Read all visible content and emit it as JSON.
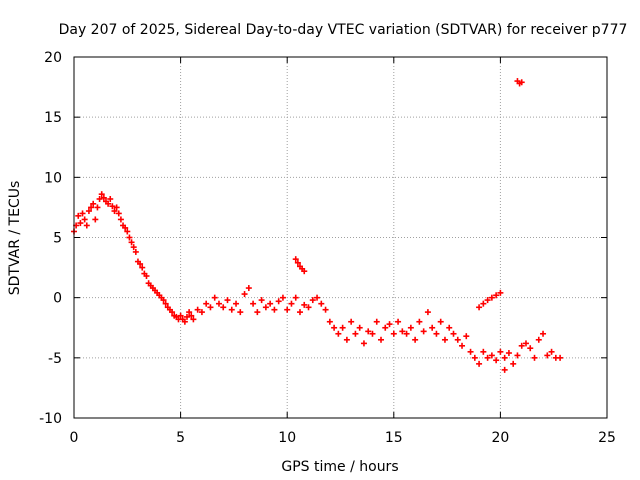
{
  "chart_data": {
    "type": "scatter",
    "title": "Day 207 of 2025, Sidereal Day-to-day VTEC variation (SDTVAR) for receiver p777",
    "xlabel": "GPS time / hours",
    "ylabel": "SDTVAR / TECUs",
    "xlim": [
      0,
      25
    ],
    "ylim": [
      -10,
      20
    ],
    "xticks": [
      "0",
      "5",
      "10",
      "15",
      "20",
      "25"
    ],
    "yticks": [
      "-10",
      "-5",
      "0",
      "5",
      "10",
      "15",
      "20"
    ],
    "grid": true,
    "marker": "plus",
    "color": "#ff0000",
    "series": [
      {
        "name": "SDTVAR",
        "x": [
          0.0,
          0.1,
          0.2,
          0.3,
          0.4,
          0.5,
          0.6,
          0.7,
          0.8,
          0.9,
          1.0,
          1.1,
          1.2,
          1.3,
          1.4,
          1.5,
          1.6,
          1.7,
          1.8,
          1.9,
          2.0,
          2.1,
          2.2,
          2.3,
          2.4,
          2.5,
          2.6,
          2.7,
          2.8,
          2.9,
          3.0,
          3.1,
          3.2,
          3.3,
          3.4,
          3.5,
          3.6,
          3.7,
          3.8,
          3.9,
          4.0,
          4.1,
          4.2,
          4.3,
          4.4,
          4.5,
          4.6,
          4.7,
          4.8,
          4.9,
          5.0,
          5.1,
          5.2,
          5.3,
          5.4,
          5.5,
          5.6,
          5.8,
          6.0,
          6.2,
          6.4,
          6.6,
          6.8,
          7.0,
          7.2,
          7.4,
          7.6,
          7.8,
          8.0,
          8.2,
          8.4,
          8.6,
          8.8,
          9.0,
          9.2,
          9.4,
          9.6,
          9.8,
          10.0,
          10.2,
          10.4,
          10.6,
          10.8,
          11.0,
          11.2,
          11.4,
          11.6,
          11.8,
          12.0,
          12.2,
          12.4,
          12.6,
          12.8,
          13.0,
          13.2,
          13.4,
          13.6,
          13.8,
          14.0,
          14.2,
          14.4,
          14.6,
          14.8,
          15.0,
          15.2,
          15.4,
          15.6,
          15.8,
          16.0,
          16.2,
          16.4,
          16.6,
          16.8,
          17.0,
          17.2,
          17.4,
          17.6,
          17.8,
          18.0,
          18.2,
          18.4,
          18.6,
          18.8,
          19.0,
          19.2,
          19.4,
          19.6,
          19.8,
          20.0,
          20.2,
          20.4,
          20.6,
          20.8,
          21.0,
          21.2,
          21.4,
          21.6,
          21.8,
          22.0,
          22.2,
          22.4,
          22.6,
          22.8,
          10.4,
          10.5,
          10.6,
          10.7,
          10.8,
          19.0,
          19.2,
          19.4,
          19.6,
          19.8,
          20.0,
          20.2,
          20.8,
          20.9,
          21.0
        ],
        "y": [
          5.5,
          6.0,
          6.8,
          6.2,
          7.0,
          6.5,
          6.0,
          7.2,
          7.5,
          7.8,
          6.5,
          7.5,
          8.2,
          8.6,
          8.3,
          8.0,
          7.8,
          8.2,
          7.6,
          7.2,
          7.5,
          7.0,
          6.5,
          6.0,
          5.8,
          5.5,
          5.0,
          4.6,
          4.2,
          3.8,
          3.0,
          2.8,
          2.5,
          2.0,
          1.8,
          1.2,
          1.0,
          0.8,
          0.6,
          0.4,
          0.2,
          0.0,
          -0.2,
          -0.5,
          -0.8,
          -1.0,
          -1.2,
          -1.5,
          -1.6,
          -1.8,
          -1.5,
          -1.8,
          -2.0,
          -1.6,
          -1.2,
          -1.5,
          -1.8,
          -1.0,
          -1.2,
          -0.5,
          -0.8,
          0.0,
          -0.5,
          -0.8,
          -0.2,
          -1.0,
          -0.5,
          -1.2,
          0.3,
          0.8,
          -0.5,
          -1.2,
          -0.2,
          -0.8,
          -0.5,
          -1.0,
          -0.3,
          0.0,
          -1.0,
          -0.5,
          0.0,
          -1.2,
          -0.6,
          -0.8,
          -0.2,
          0.0,
          -0.5,
          -1.0,
          -2.0,
          -2.5,
          -3.0,
          -2.5,
          -3.5,
          -2.0,
          -3.0,
          -2.5,
          -3.8,
          -2.8,
          -3.0,
          -2.0,
          -3.5,
          -2.5,
          -2.2,
          -3.0,
          -2.0,
          -2.8,
          -3.0,
          -2.5,
          -3.5,
          -2.0,
          -2.8,
          -1.2,
          -2.5,
          -3.0,
          -2.0,
          -3.5,
          -2.5,
          -3.0,
          -3.5,
          -4.0,
          -3.2,
          -4.5,
          -5.0,
          -5.5,
          -4.5,
          -5.0,
          -4.8,
          -5.2,
          -4.5,
          -5.0,
          -4.6,
          -5.5,
          -4.8,
          -4.0,
          -3.8,
          -4.2,
          -5.0,
          -3.5,
          -3.0,
          -4.8,
          -4.5,
          -5.0,
          -5.0,
          3.2,
          2.9,
          2.6,
          2.4,
          2.2,
          -0.8,
          -0.5,
          -0.2,
          0.0,
          0.2,
          0.4,
          -6.0,
          18.0,
          17.8,
          17.9
        ]
      }
    ]
  }
}
